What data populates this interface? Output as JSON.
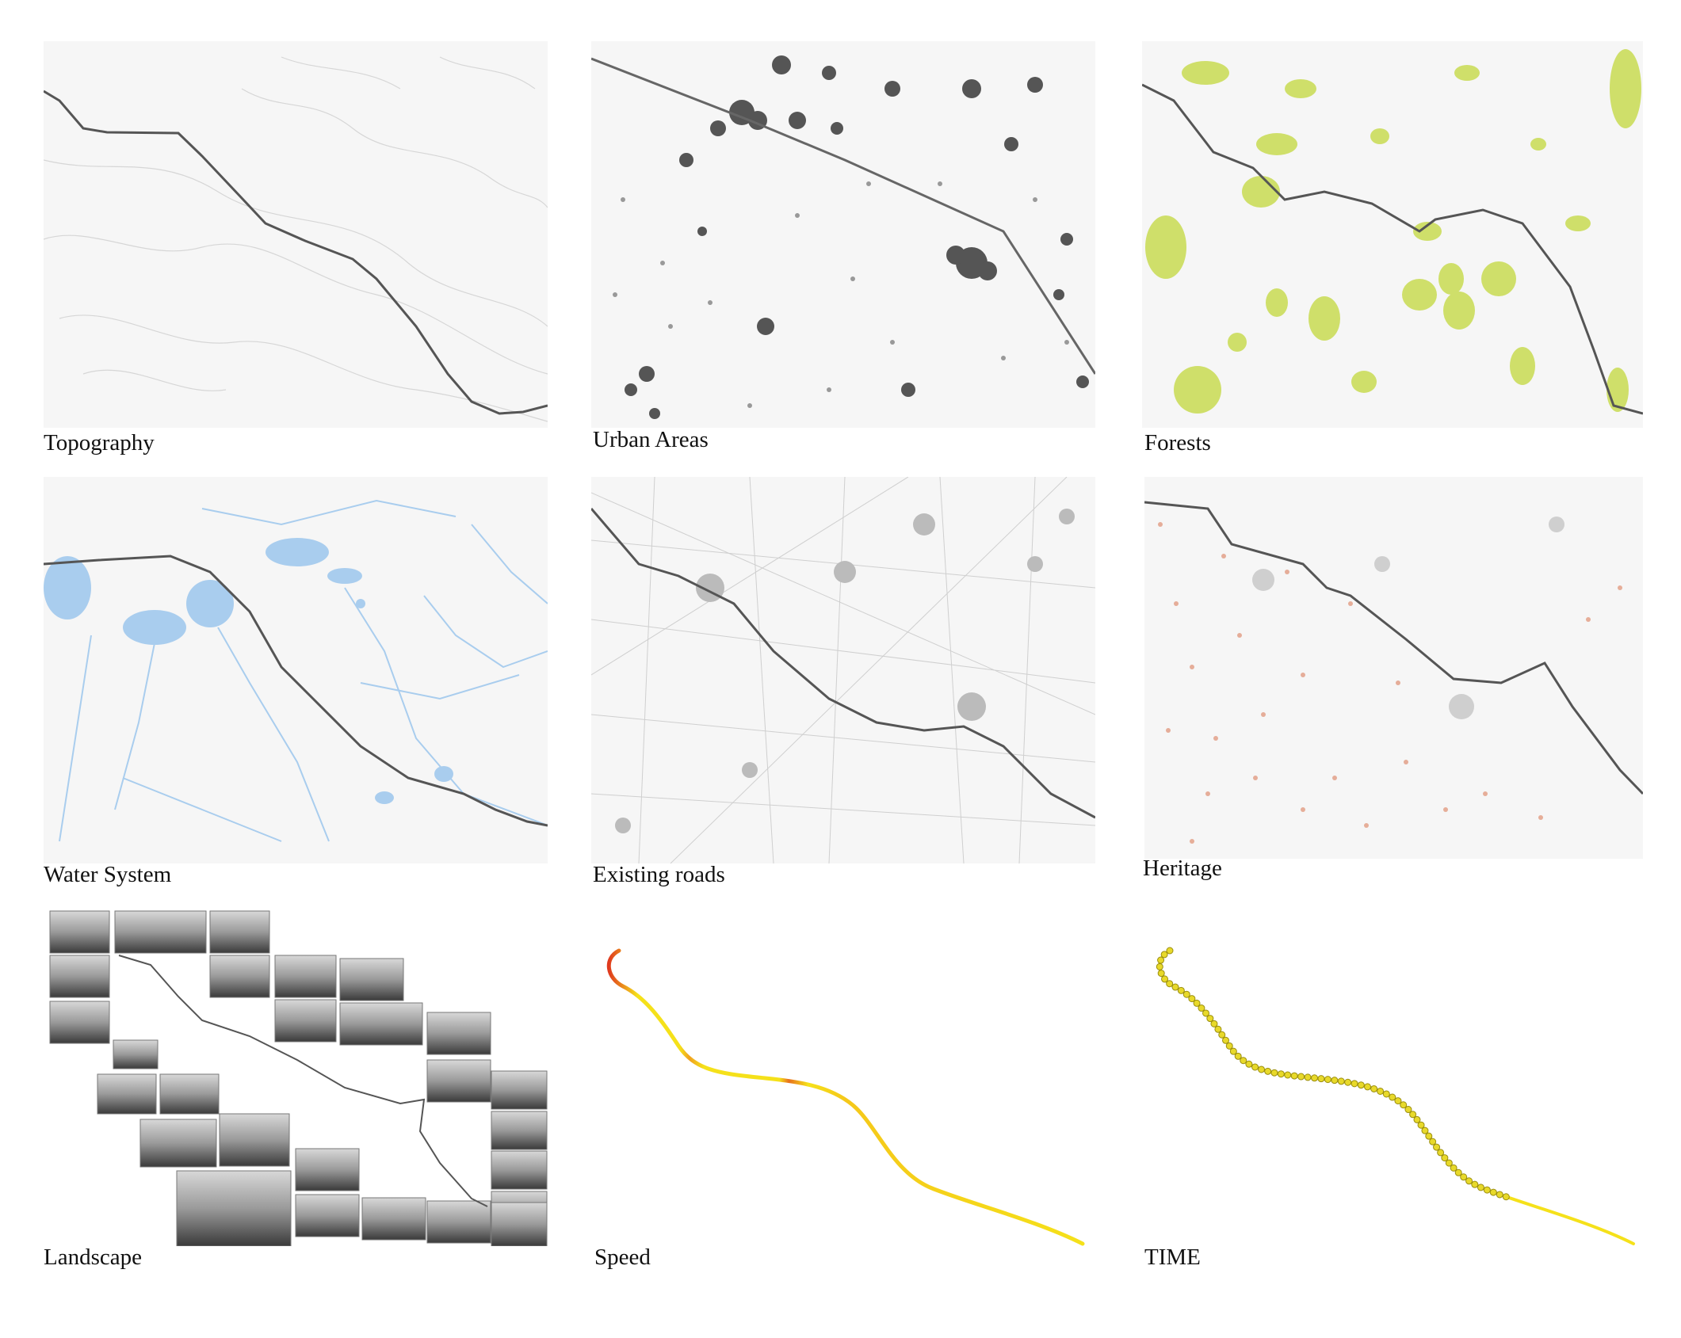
{
  "panels": [
    {
      "id": "topography",
      "label": "Topography"
    },
    {
      "id": "urban",
      "label": "Urban Areas"
    },
    {
      "id": "forests",
      "label": "Forests"
    },
    {
      "id": "water",
      "label": "Water System"
    },
    {
      "id": "roads",
      "label": "Existing roads"
    },
    {
      "id": "heritage",
      "label": "Heritage"
    },
    {
      "id": "landscape",
      "label": "Landscape"
    },
    {
      "id": "speed",
      "label": "Speed"
    },
    {
      "id": "time",
      "label": "TIME"
    }
  ],
  "colors": {
    "route": "#555555",
    "forest": "#cfdf6a",
    "water": "#a9cdee",
    "urban": "#555555",
    "heritage": "#e0957a",
    "speed_high": "#e03a1e",
    "speed_low": "#f5e11a",
    "time_dot": "#e8d92a"
  }
}
